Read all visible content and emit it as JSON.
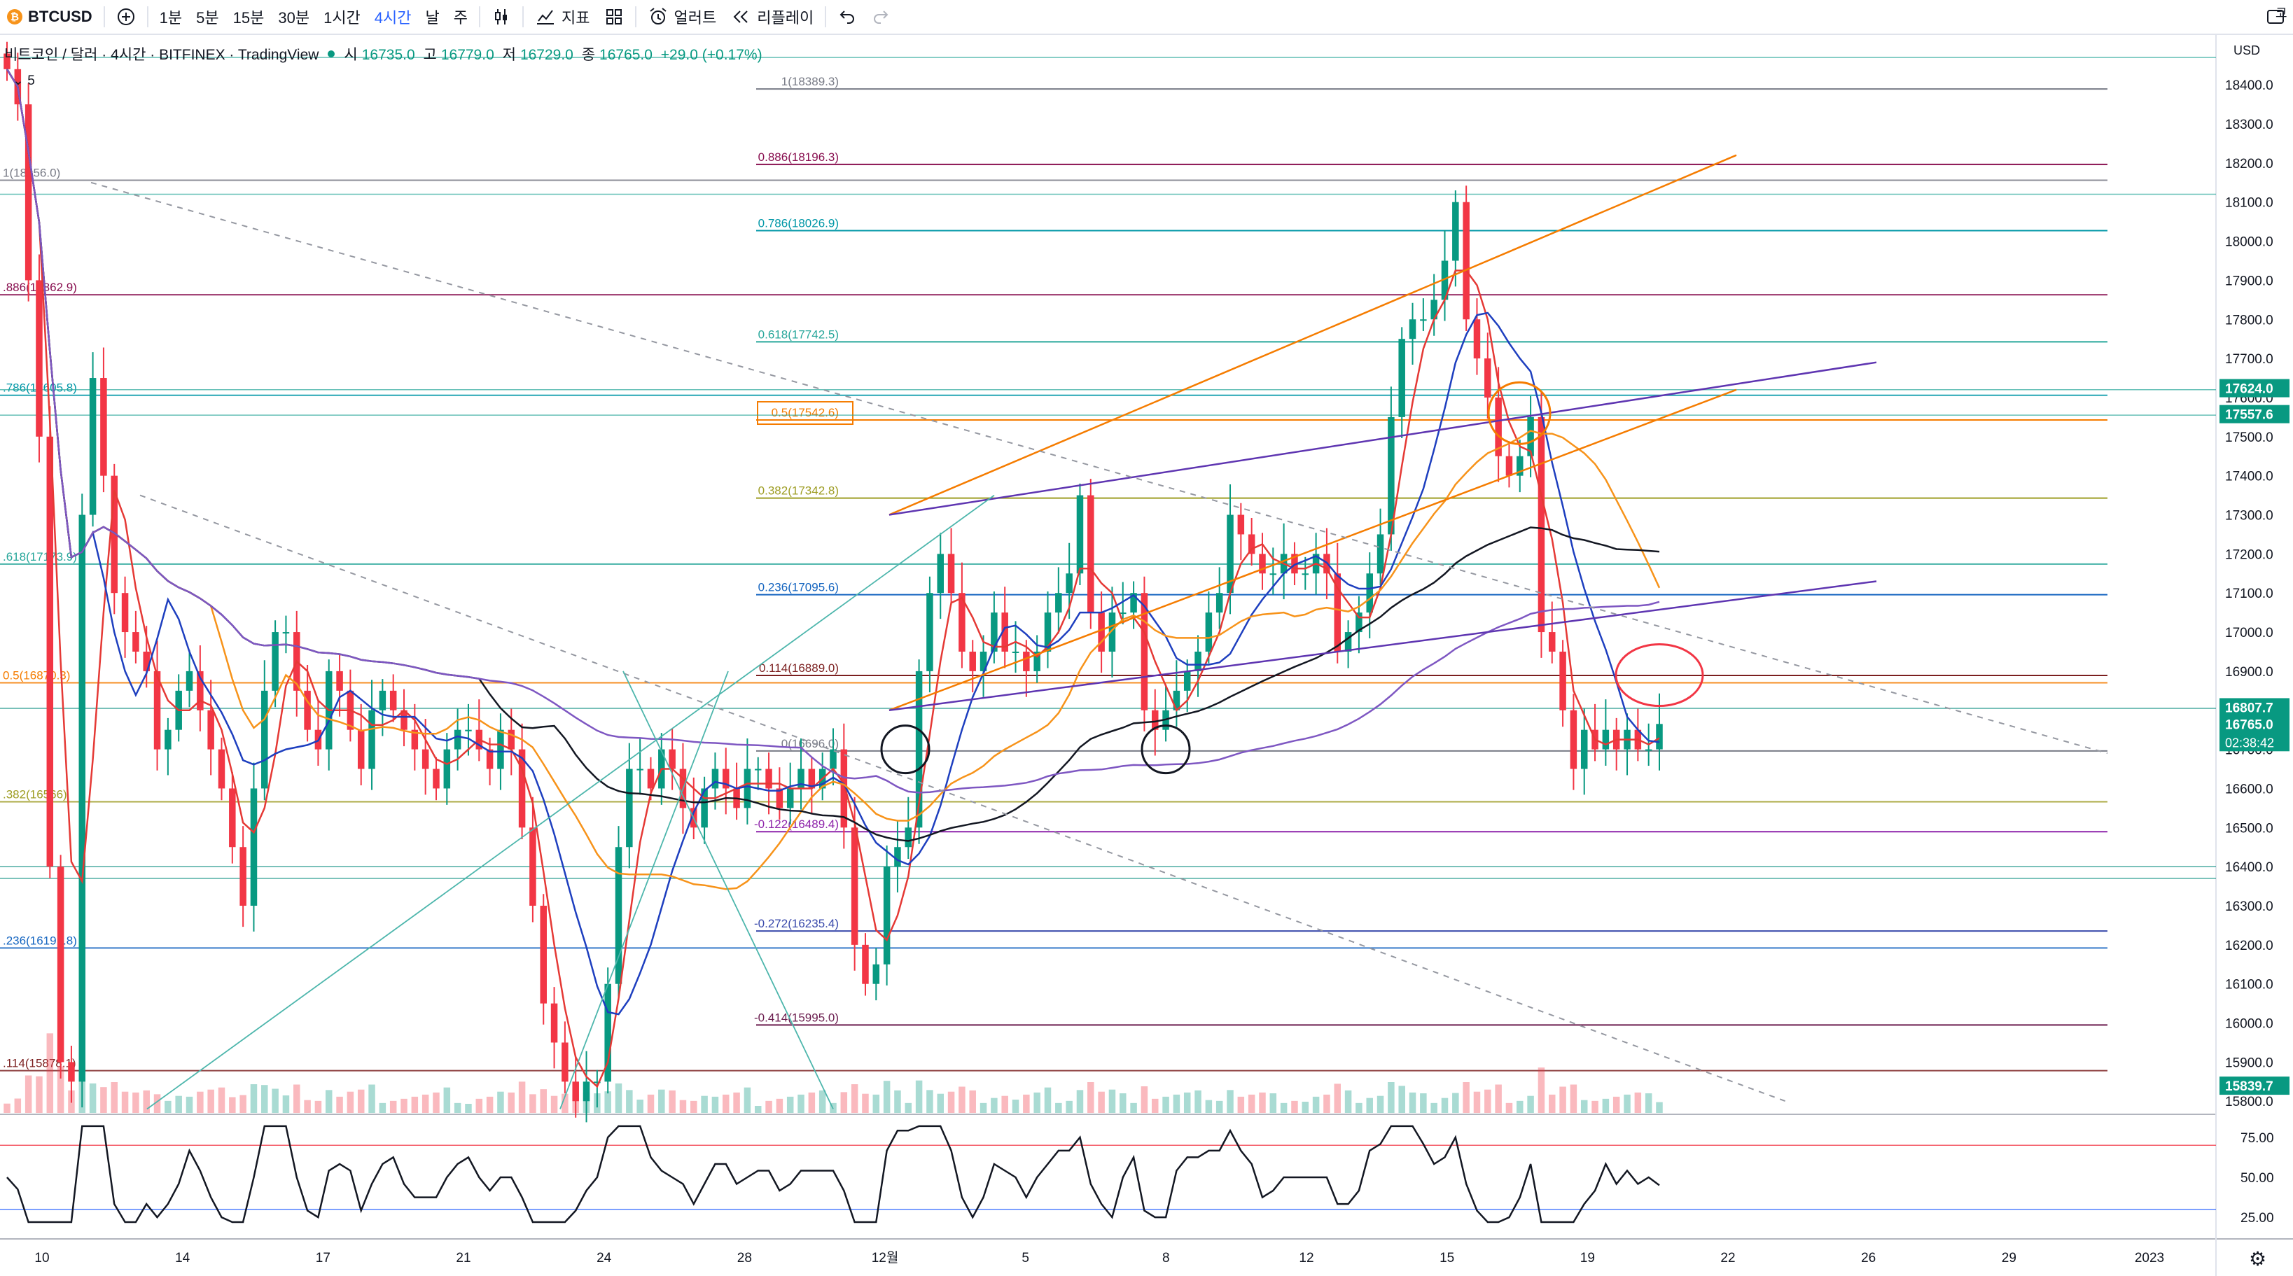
{
  "toolbar": {
    "symbol": "BTCUSD",
    "timeframes": [
      "1분",
      "5분",
      "15분",
      "30분",
      "1시간",
      "4시간",
      "날",
      "주"
    ],
    "active_timeframe": "4시간",
    "indicators_label": "지표",
    "alerts_label": "얼러트",
    "replay_label": "리플레이",
    "corner_text": "코"
  },
  "legend": {
    "title": "비트코인 / 달러 · 4시간 · BITFINEX · TradingView",
    "o_label": "시",
    "o": "16735.0",
    "h_label": "고",
    "h": "16779.0",
    "l_label": "저",
    "l": "16729.0",
    "c_label": "종",
    "c": "16765.0",
    "change": "+29.0 (+0.17%)",
    "indicator_count": "5"
  },
  "colors": {
    "up": "#089981",
    "down": "#f23645",
    "ma_black": "#131722",
    "ma_blue": "#1e3fbf",
    "ma_orange": "#f7931a",
    "ma_purple": "#7e57c2",
    "ma_red": "#e53935",
    "accent": "#2962ff"
  },
  "chart_data": {
    "type": "candlestick",
    "currency": "USD",
    "x_tick_labels": [
      "10",
      "14",
      "17",
      "21",
      "24",
      "28",
      "12월",
      "5",
      "8",
      "12",
      "15",
      "19",
      "22",
      "26",
      "29",
      "2023"
    ],
    "price_axis_labels": [
      "18400.0",
      "18300.0",
      "18200.0",
      "18100.0",
      "18000.0",
      "17900.0",
      "17800.0",
      "17700.0",
      "17600.0",
      "17500.0",
      "17400.0",
      "17300.0",
      "17200.0",
      "17100.0",
      "17000.0",
      "16900.0",
      "16800.0",
      "16700.0",
      "16600.0",
      "16500.0",
      "16400.0",
      "16300.0",
      "16200.0",
      "16100.0",
      "16000.0",
      "15900.0",
      "15800.0"
    ],
    "ylim": [
      15750,
      18500
    ],
    "price_badges": [
      {
        "label": "17624.0",
        "price": 17624.0,
        "color": "#089981"
      },
      {
        "label": "17557.6",
        "price": 17557.6,
        "color": "#089981"
      },
      {
        "label": "16807.7",
        "price": 16807.7,
        "color": "#089981"
      },
      {
        "label": "16765.0",
        "price": 16765.0,
        "color": "#089981",
        "sub": "02:38:42"
      },
      {
        "label": "15839.7",
        "price": 15839.7,
        "color": "#089981"
      }
    ],
    "fib_right": [
      {
        "label": "1(18389.3)",
        "price": 18389.3,
        "color": "#787b86"
      },
      {
        "label": "0.886(18196.3)",
        "price": 18196.3,
        "color": "#880e4f"
      },
      {
        "label": "0.786(18026.9)",
        "price": 18026.9,
        "color": "#0097a7"
      },
      {
        "label": "0.618(17742.5)",
        "price": 17742.5,
        "color": "#26a69a"
      },
      {
        "label": "0.5(17542.6)",
        "price": 17542.6,
        "color": "#f57c00",
        "boxed": true
      },
      {
        "label": "0.382(17342.8)",
        "price": 17342.8,
        "color": "#9e9d24"
      },
      {
        "label": "0.236(17095.6)",
        "price": 17095.6,
        "color": "#1565c0"
      },
      {
        "label": "0.114(16889.0)",
        "price": 16889.0,
        "color": "#7b1f1f"
      },
      {
        "label": "0(16696.0)",
        "price": 16696.0,
        "color": "#787b86"
      },
      {
        "label": "-0.122(16489.4)",
        "price": 16489.4,
        "color": "#8e24aa"
      },
      {
        "label": "-0.272(16235.4)",
        "price": 16235.4,
        "color": "#3949ab"
      },
      {
        "label": "-0.414(15995.0)",
        "price": 15995.0,
        "color": "#6a1b4d"
      }
    ],
    "fib_left": [
      {
        "label": "1(18156.0)",
        "price": 18156.0,
        "color": "#787b86"
      },
      {
        "label": ".886(17862.9)",
        "price": 17862.9,
        "color": "#880e4f"
      },
      {
        "label": ".786(17605.8)",
        "price": 17605.8,
        "color": "#0097a7"
      },
      {
        "label": ".618(17173.9)",
        "price": 17173.9,
        "color": "#26a69a"
      },
      {
        "label": "0.5(16870.3)",
        "price": 16870.3,
        "color": "#f57c00"
      },
      {
        "label": ".382(16566)",
        "price": 16566.0,
        "color": "#9e9d24"
      },
      {
        "label": ".236(16191.8)",
        "price": 16191.8,
        "color": "#1565c0"
      },
      {
        "label": ".114(15878.1)",
        "price": 15878.1,
        "color": "#7b1f1f"
      }
    ],
    "closes": [
      18440,
      18350,
      17900,
      17500,
      16400,
      15900,
      15850,
      17300,
      17650,
      17400,
      17100,
      17000,
      16950,
      16900,
      16700,
      16750,
      16850,
      16900,
      16800,
      16700,
      16600,
      16450,
      16300,
      16600,
      16850,
      17000,
      17000,
      16850,
      16750,
      16700,
      16900,
      16850,
      16750,
      16650,
      16800,
      16850,
      16800,
      16750,
      16700,
      16650,
      16600,
      16700,
      16750,
      16750,
      16700,
      16650,
      16750,
      16700,
      16500,
      16300,
      16050,
      15950,
      15850,
      15800,
      15850,
      15850,
      16100,
      16450,
      16650,
      16650,
      16600,
      16700,
      16650,
      16550,
      16500,
      16600,
      16650,
      16600,
      16550,
      16650,
      16650,
      16600,
      16550,
      16600,
      16650,
      16600,
      16650,
      16700,
      16500,
      16200,
      16100,
      16150,
      16400,
      16450,
      16500,
      16900,
      17100,
      17200,
      17100,
      16950,
      16900,
      16950,
      17050,
      16950,
      16950,
      16900,
      16950,
      17050,
      17100,
      17150,
      17350,
      17050,
      16950,
      17050,
      17050,
      17100,
      16800,
      16750,
      16800,
      16850,
      16900,
      16950,
      17050,
      17100,
      17300,
      17250,
      17200,
      17150,
      17150,
      17200,
      17150,
      17150,
      17200,
      17150,
      16950,
      17000,
      17050,
      17150,
      17250,
      17550,
      17750,
      17800,
      17800,
      17850,
      17950,
      18100,
      17800,
      17700,
      17600,
      17450,
      17400,
      17450,
      17550,
      17000,
      16950,
      16800,
      16650,
      16750,
      16700,
      16750,
      16700,
      16750,
      16700,
      16700,
      16765
    ],
    "rsi": {
      "levels": [
        70,
        30
      ],
      "axis_labels": [
        "75.00",
        "50.00",
        "25.00"
      ],
      "last": 45
    }
  }
}
